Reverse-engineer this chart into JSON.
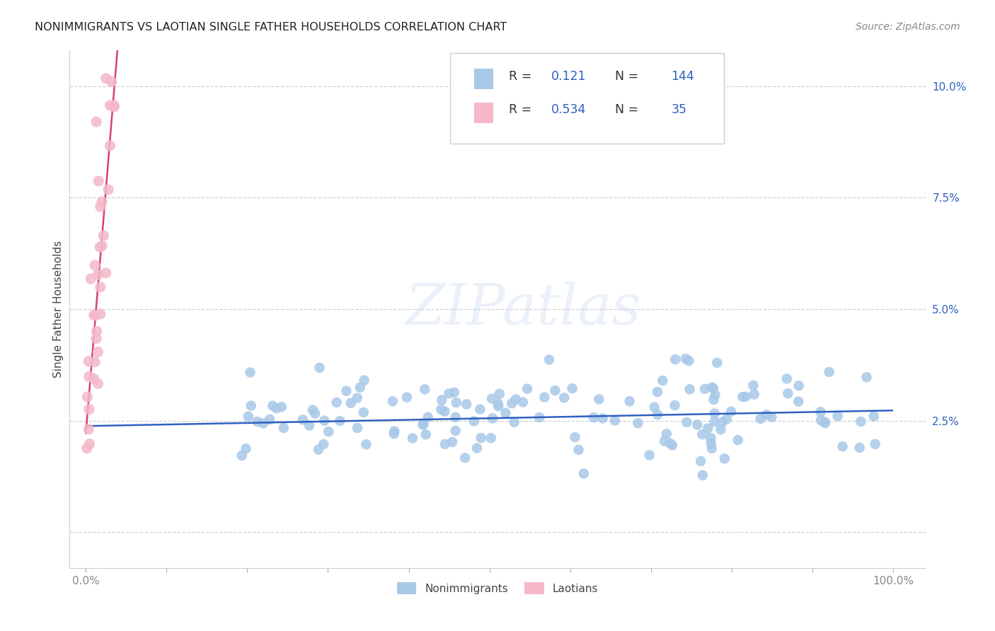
{
  "title": "NONIMMIGRANTS VS LAOTIAN SINGLE FATHER HOUSEHOLDS CORRELATION CHART",
  "source": "Source: ZipAtlas.com",
  "ylabel": "Single Father Households",
  "xlim": [
    -0.02,
    1.04
  ],
  "ylim": [
    -0.008,
    0.108
  ],
  "xticks": [
    0.0,
    0.1,
    0.2,
    0.3,
    0.4,
    0.5,
    0.6,
    0.7,
    0.8,
    0.9,
    1.0
  ],
  "xtick_labels": [
    "0.0%",
    "",
    "",
    "",
    "",
    "",
    "",
    "",
    "",
    "",
    "100.0%"
  ],
  "yticks": [
    0.0,
    0.025,
    0.05,
    0.075,
    0.1
  ],
  "ytick_labels": [
    "",
    "2.5%",
    "5.0%",
    "7.5%",
    "10.0%"
  ],
  "blue_R": 0.121,
  "blue_N": 144,
  "pink_R": 0.534,
  "pink_N": 35,
  "blue_color": "#a8c8e8",
  "pink_color": "#f4b8c8",
  "blue_line_color": "#3060c0",
  "pink_line_color": "#d84070",
  "pink_dash_color": "#e8a0b8",
  "grid_color": "#d0d0d0",
  "background_color": "#ffffff",
  "label_color": "#3060c0",
  "title_color": "#222222",
  "source_color": "#888888",
  "ylabel_color": "#444444",
  "tick_color": "#888888",
  "blue_seed": 77,
  "pink_seed": 42
}
